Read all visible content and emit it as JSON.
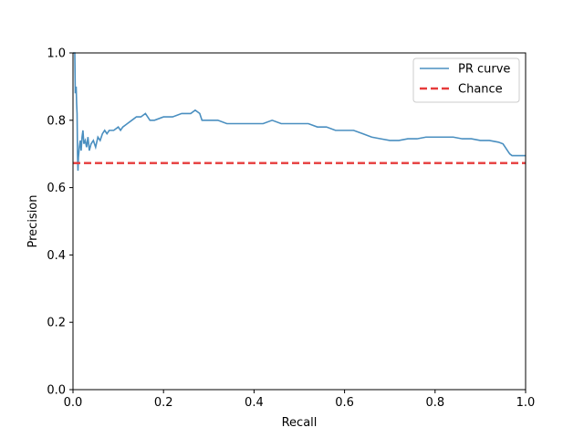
{
  "chart_data": {
    "type": "line",
    "title": "",
    "xlabel": "Recall",
    "ylabel": "Precision",
    "xlim": [
      0,
      1
    ],
    "ylim": [
      0,
      1
    ],
    "xticks": [
      "0.0",
      "0.2",
      "0.4",
      "0.6",
      "0.8",
      "1.0"
    ],
    "yticks": [
      "0.0",
      "0.2",
      "0.4",
      "0.6",
      "0.8",
      "1.0"
    ],
    "grid": false,
    "legend_position": "top-right",
    "series": [
      {
        "name": "PR curve",
        "color": "#4a8fc0",
        "style": "solid",
        "points": [
          [
            0.0,
            1.0
          ],
          [
            0.004,
            1.0
          ],
          [
            0.005,
            0.88
          ],
          [
            0.007,
            0.9
          ],
          [
            0.008,
            0.85
          ],
          [
            0.009,
            0.82
          ],
          [
            0.01,
            0.7
          ],
          [
            0.011,
            0.65
          ],
          [
            0.012,
            0.69
          ],
          [
            0.014,
            0.72
          ],
          [
            0.016,
            0.74
          ],
          [
            0.018,
            0.71
          ],
          [
            0.02,
            0.75
          ],
          [
            0.022,
            0.77
          ],
          [
            0.024,
            0.73
          ],
          [
            0.027,
            0.74
          ],
          [
            0.03,
            0.72
          ],
          [
            0.033,
            0.75
          ],
          [
            0.036,
            0.71
          ],
          [
            0.04,
            0.73
          ],
          [
            0.045,
            0.74
          ],
          [
            0.05,
            0.72
          ],
          [
            0.055,
            0.75
          ],
          [
            0.06,
            0.74
          ],
          [
            0.065,
            0.76
          ],
          [
            0.07,
            0.77
          ],
          [
            0.075,
            0.76
          ],
          [
            0.08,
            0.77
          ],
          [
            0.09,
            0.77
          ],
          [
            0.1,
            0.78
          ],
          [
            0.105,
            0.77
          ],
          [
            0.11,
            0.78
          ],
          [
            0.12,
            0.79
          ],
          [
            0.13,
            0.8
          ],
          [
            0.14,
            0.81
          ],
          [
            0.15,
            0.81
          ],
          [
            0.16,
            0.82
          ],
          [
            0.17,
            0.8
          ],
          [
            0.18,
            0.8
          ],
          [
            0.2,
            0.81
          ],
          [
            0.22,
            0.81
          ],
          [
            0.24,
            0.82
          ],
          [
            0.26,
            0.82
          ],
          [
            0.27,
            0.83
          ],
          [
            0.28,
            0.82
          ],
          [
            0.285,
            0.8
          ],
          [
            0.3,
            0.8
          ],
          [
            0.32,
            0.8
          ],
          [
            0.34,
            0.79
          ],
          [
            0.36,
            0.79
          ],
          [
            0.38,
            0.79
          ],
          [
            0.4,
            0.79
          ],
          [
            0.42,
            0.79
          ],
          [
            0.44,
            0.8
          ],
          [
            0.46,
            0.79
          ],
          [
            0.5,
            0.79
          ],
          [
            0.52,
            0.79
          ],
          [
            0.54,
            0.78
          ],
          [
            0.56,
            0.78
          ],
          [
            0.58,
            0.77
          ],
          [
            0.6,
            0.77
          ],
          [
            0.62,
            0.77
          ],
          [
            0.64,
            0.76
          ],
          [
            0.66,
            0.75
          ],
          [
            0.68,
            0.745
          ],
          [
            0.7,
            0.74
          ],
          [
            0.72,
            0.74
          ],
          [
            0.74,
            0.745
          ],
          [
            0.76,
            0.745
          ],
          [
            0.78,
            0.75
          ],
          [
            0.8,
            0.75
          ],
          [
            0.82,
            0.75
          ],
          [
            0.84,
            0.75
          ],
          [
            0.86,
            0.745
          ],
          [
            0.88,
            0.745
          ],
          [
            0.9,
            0.74
          ],
          [
            0.92,
            0.74
          ],
          [
            0.94,
            0.735
          ],
          [
            0.95,
            0.73
          ],
          [
            0.955,
            0.72
          ],
          [
            0.96,
            0.71
          ],
          [
            0.965,
            0.7
          ],
          [
            0.97,
            0.695
          ],
          [
            0.98,
            0.695
          ],
          [
            0.99,
            0.695
          ],
          [
            1.0,
            0.695
          ]
        ]
      },
      {
        "name": "Chance",
        "color": "#e63b3b",
        "style": "dashed",
        "points": [
          [
            0.0,
            0.673
          ],
          [
            1.0,
            0.673
          ]
        ]
      }
    ]
  }
}
